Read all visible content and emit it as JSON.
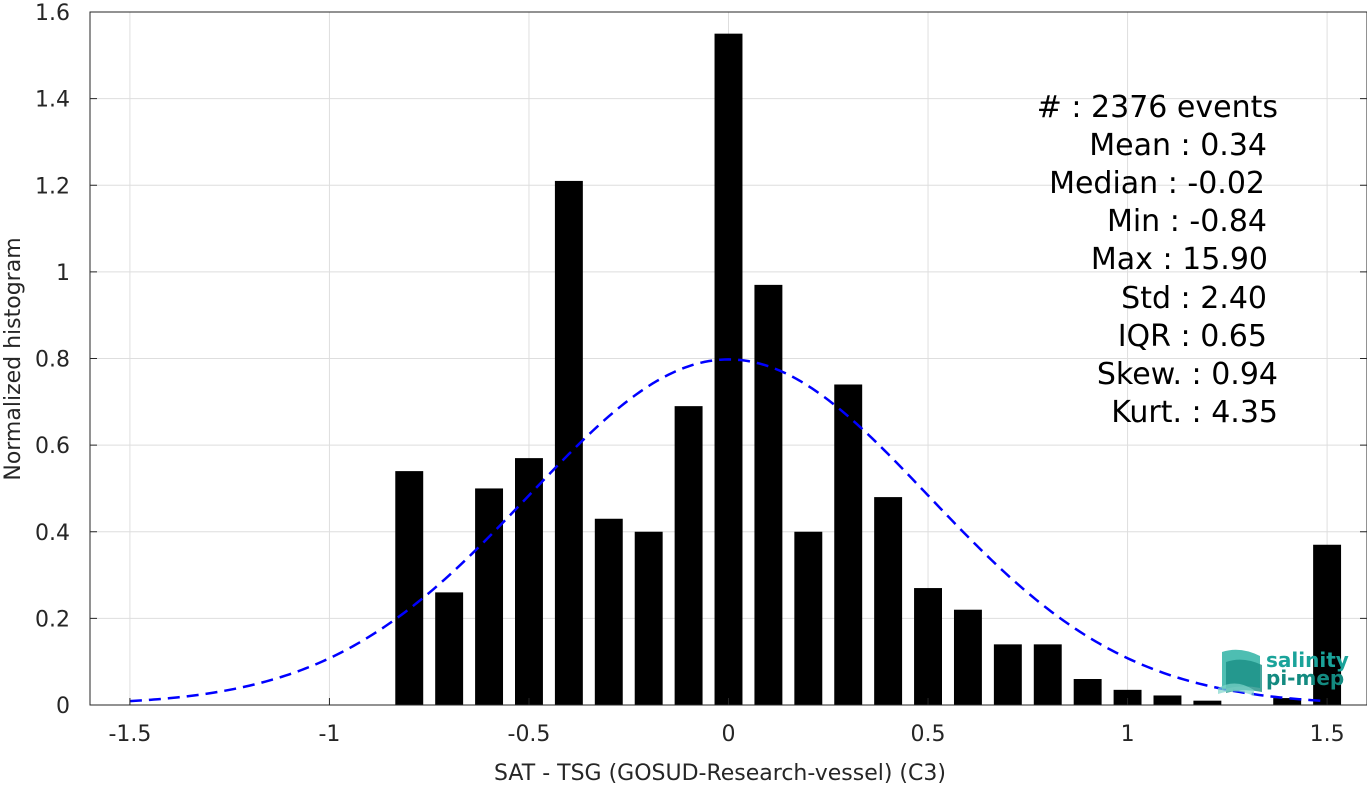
{
  "chart_data": {
    "type": "bar",
    "xlabel": "SAT - TSG (GOSUD-Research-vessel) (C3)",
    "ylabel": "Normalized histogram",
    "xlim": [
      -1.6,
      1.6
    ],
    "ylim": [
      0,
      1.6
    ],
    "grid": true,
    "xticks": [
      {
        "value": -1.5,
        "label": "-1.5"
      },
      {
        "value": -1.0,
        "label": "-1"
      },
      {
        "value": -0.5,
        "label": "-0.5"
      },
      {
        "value": 0.0,
        "label": "0"
      },
      {
        "value": 0.5,
        "label": "0.5"
      },
      {
        "value": 1.0,
        "label": "1"
      },
      {
        "value": 1.5,
        "label": "1.5"
      }
    ],
    "yticks": [
      {
        "value": 0,
        "label": "0"
      },
      {
        "value": 0.2,
        "label": "0.2"
      },
      {
        "value": 0.4,
        "label": "0.4"
      },
      {
        "value": 0.6,
        "label": "0.6"
      },
      {
        "value": 0.8,
        "label": "0.8"
      },
      {
        "value": 1.0,
        "label": "1"
      },
      {
        "value": 1.2,
        "label": "1.2"
      },
      {
        "value": 1.4,
        "label": "1.4"
      },
      {
        "value": 1.6,
        "label": "1.6"
      }
    ],
    "bar_width": 0.07,
    "bars": {
      "color": "#000000",
      "x": [
        -0.8,
        -0.7,
        -0.6,
        -0.5,
        -0.4,
        -0.3,
        -0.2,
        -0.1,
        0.0,
        0.1,
        0.2,
        0.3,
        0.4,
        0.5,
        0.6,
        0.7,
        0.8,
        0.9,
        1.0,
        1.1,
        1.2,
        1.3,
        1.4,
        1.5
      ],
      "values": [
        0.54,
        0.26,
        0.5,
        0.57,
        1.21,
        0.43,
        0.4,
        0.69,
        1.55,
        0.97,
        0.4,
        0.74,
        0.48,
        0.27,
        0.22,
        0.14,
        0.14,
        0.06,
        0.035,
        0.022,
        0.01,
        0.0,
        0.016,
        0.37
      ]
    },
    "fit_curve": {
      "type": "normal-pdf",
      "style": "dashed",
      "color": "#0000ff",
      "mean": 0.0,
      "sigma": 0.5,
      "x_range": [
        -1.5,
        1.5
      ]
    },
    "stats_text": [
      "#  : 2376 events",
      "Mean : 0.34",
      "Median : -0.02",
      "Min : -0.84",
      "Max : 15.90",
      "Std : 2.40",
      "IQR : 0.65",
      "Skew. : 0.94",
      "Kurt. : 4.35"
    ]
  },
  "logo": {
    "line1": "salinity",
    "line2": "pi-mep",
    "color": "#1aa39a"
  }
}
